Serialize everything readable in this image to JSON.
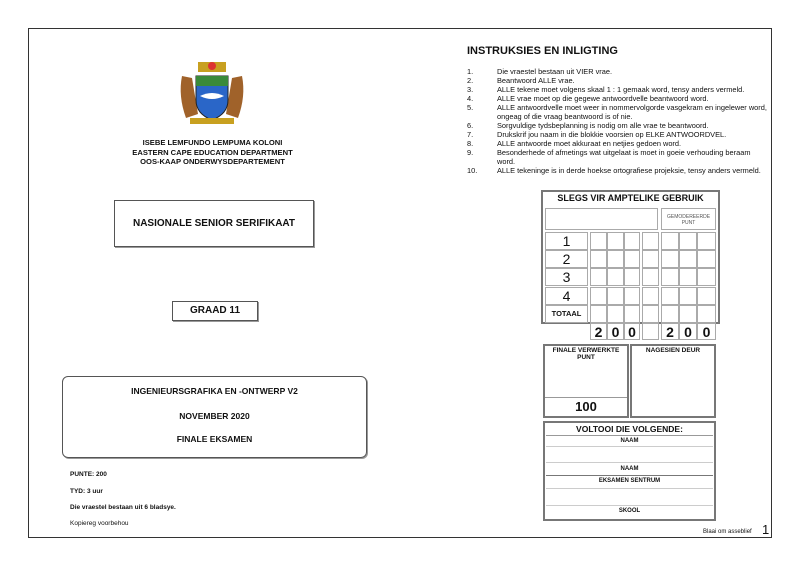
{
  "header": {
    "lines": [
      "ISEBE LEMFUNDO LEMPUMA KOLONI",
      "EASTERN CAPE EDUCATION DEPARTMENT",
      "OOS-KAAP ONDERWYSDEPARTEMENT"
    ]
  },
  "certificate": "NASIONALE SENIOR SERIFIKAAT",
  "grade": "GRAAD 11",
  "subject": {
    "title": "INGENIEURSGRAFIKA EN -ONTWERP V2",
    "date": "NOVEMBER 2020",
    "exam": "FINALE EKSAMEN"
  },
  "details": {
    "marks": "PUNTE:  200",
    "time": "TYD:  3 uur",
    "pages": "Die vraestel bestaan uit 6 bladsye.",
    "copyright": "Kopiereg voorbehou"
  },
  "instructions": {
    "title": "INSTRUKSIES EN INLIGTING",
    "items": [
      {
        "n": "1.",
        "t": "Die vraestel bestaan uit VIER vrae."
      },
      {
        "n": "2.",
        "t": "Beantwoord ALLE vrae."
      },
      {
        "n": "3.",
        "t": "ALLE tekene moet volgens skaal 1 : 1 gemaak word, tensy anders vermeld."
      },
      {
        "n": "4.",
        "t": "ALLE vrae moet op die gegewe antwoordvelle beantwoord word."
      },
      {
        "n": "5.",
        "t": "ALLE antwoordvelle moet weer in nommervolgorde vasgekram en ingelewer word, ongeag of die vraag beantwoord is of nie."
      },
      {
        "n": "6.",
        "t": "Sorgvuldige tydsbeplanning is nodig om alle vrae te beantwoord."
      },
      {
        "n": "7.",
        "t": "Drukskrif jou naam in die blokkie voorsien op ELKE ANTWOORDVEL."
      },
      {
        "n": "8.",
        "t": "ALLE antwoorde moet akkuraat en netjies gedoen word."
      },
      {
        "n": "9.",
        "t": "Besonderhede of afmetings wat uitgelaat is moet in goeie verhouding beraam word."
      },
      {
        "n": "10.",
        "t": "ALLE tekeninge is in derde hoekse ortografiese projeksie, tensy anders vermeld."
      }
    ]
  },
  "official": {
    "title": "SLEGS VIR AMPTELIKE GEBRUIK",
    "moderated": "GEMODEREERDE PUNT",
    "questions": [
      "1",
      "2",
      "3",
      "4"
    ],
    "total_label": "TOTAAL",
    "total_left": [
      "2",
      "0",
      "0"
    ],
    "total_right": [
      "2",
      "0",
      "0"
    ]
  },
  "final": {
    "label": "FINALE VERWERKTE PUNT",
    "value": "100",
    "checked": "NAGESIEN DEUR"
  },
  "complete": {
    "title": "VOLTOOI DIE VOLGENDE:",
    "name1": "NAAM",
    "name2": "NAAM",
    "centre": "EKSAMEN SENTRUM",
    "school": "SKOOL"
  },
  "footer": {
    "turn": "Blaai om asseblief",
    "page": "1"
  }
}
